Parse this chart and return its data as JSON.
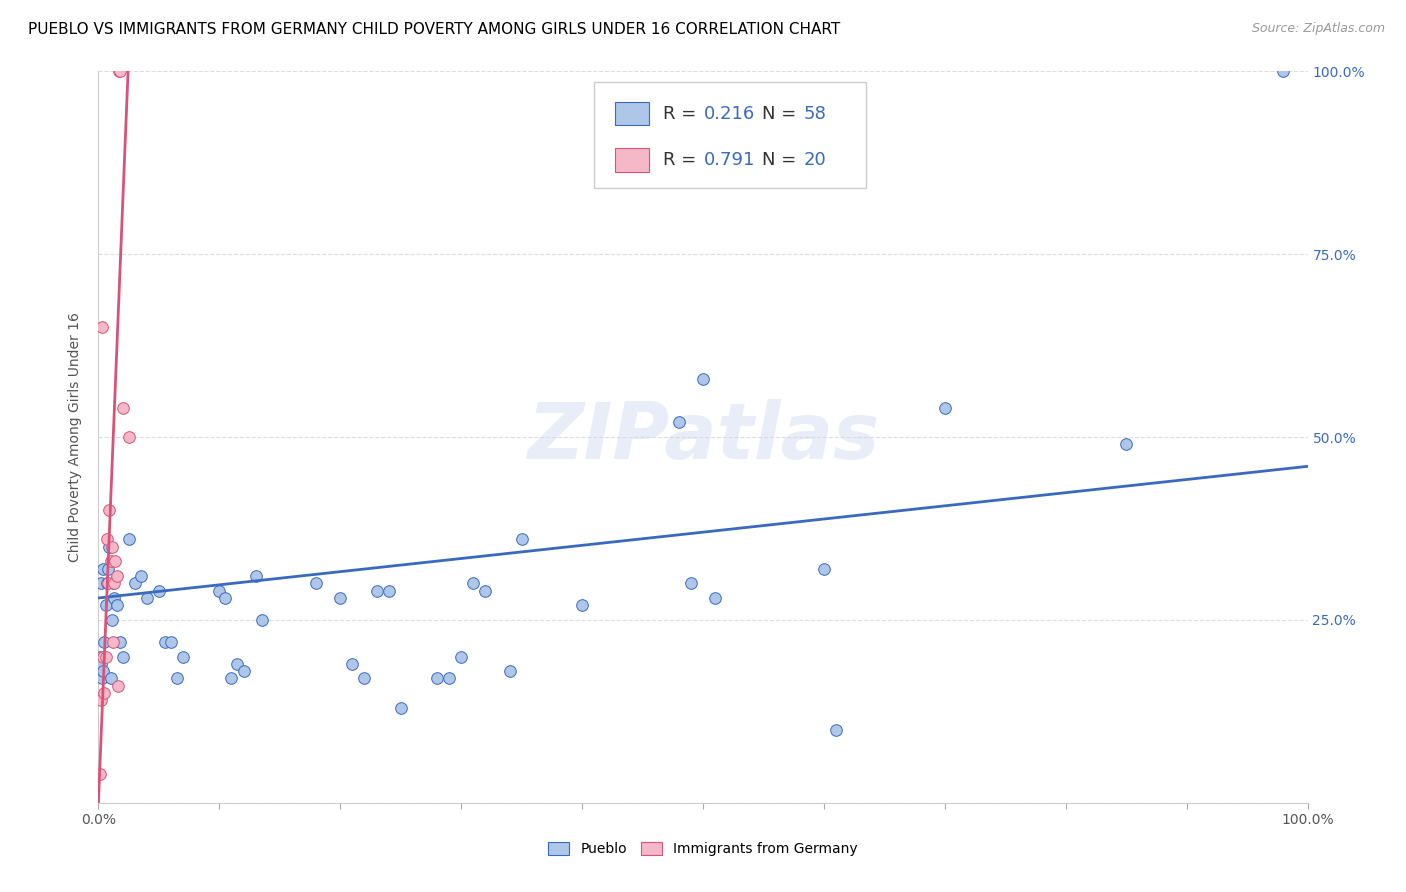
{
  "title": "PUEBLO VS IMMIGRANTS FROM GERMANY CHILD POVERTY AMONG GIRLS UNDER 16 CORRELATION CHART",
  "source": "Source: ZipAtlas.com",
  "ylabel": "Child Poverty Among Girls Under 16",
  "watermark": "ZIPatlas",
  "blue_R": 0.216,
  "blue_N": 58,
  "pink_R": 0.791,
  "pink_N": 20,
  "blue_color": "#aec6e8",
  "pink_color": "#f4b8c8",
  "blue_line_color": "#3a6abf",
  "pink_line_color": "#d9527a",
  "pueblo_x": [
    0.001,
    0.002,
    0.002,
    0.003,
    0.004,
    0.004,
    0.005,
    0.006,
    0.007,
    0.008,
    0.009,
    0.01,
    0.011,
    0.012,
    0.013,
    0.015,
    0.018,
    0.02,
    0.025,
    0.03,
    0.035,
    0.04,
    0.05,
    0.055,
    0.06,
    0.065,
    0.07,
    0.1,
    0.105,
    0.11,
    0.115,
    0.12,
    0.13,
    0.135,
    0.18,
    0.2,
    0.21,
    0.22,
    0.23,
    0.24,
    0.25,
    0.28,
    0.29,
    0.3,
    0.31,
    0.32,
    0.34,
    0.35,
    0.4,
    0.48,
    0.49,
    0.5,
    0.51,
    0.6,
    0.61,
    0.7,
    0.85,
    0.98
  ],
  "pueblo_y": [
    0.2,
    0.19,
    0.3,
    0.17,
    0.18,
    0.32,
    0.22,
    0.27,
    0.3,
    0.32,
    0.35,
    0.17,
    0.25,
    0.3,
    0.28,
    0.27,
    0.22,
    0.2,
    0.36,
    0.3,
    0.31,
    0.28,
    0.29,
    0.22,
    0.22,
    0.17,
    0.2,
    0.29,
    0.28,
    0.17,
    0.19,
    0.18,
    0.31,
    0.25,
    0.3,
    0.28,
    0.19,
    0.17,
    0.29,
    0.29,
    0.13,
    0.17,
    0.17,
    0.2,
    0.3,
    0.29,
    0.18,
    0.36,
    0.27,
    0.52,
    0.3,
    0.58,
    0.28,
    0.32,
    0.1,
    0.54,
    0.49,
    1.0
  ],
  "germany_x": [
    0.001,
    0.002,
    0.003,
    0.004,
    0.005,
    0.006,
    0.007,
    0.008,
    0.009,
    0.01,
    0.011,
    0.012,
    0.013,
    0.014,
    0.015,
    0.016,
    0.017,
    0.018,
    0.02,
    0.025
  ],
  "germany_y": [
    0.04,
    0.14,
    0.65,
    0.2,
    0.15,
    0.2,
    0.36,
    0.3,
    0.4,
    0.33,
    0.35,
    0.22,
    0.3,
    0.33,
    0.31,
    0.16,
    1.0,
    1.0,
    0.54,
    0.5
  ],
  "blue_trend_x": [
    0.0,
    1.0
  ],
  "blue_trend_y": [
    0.28,
    0.46
  ],
  "pink_trend_x": [
    0.0,
    0.025
  ],
  "pink_trend_y": [
    0.0,
    1.02
  ],
  "xlim": [
    0.0,
    1.0
  ],
  "ylim": [
    0.0,
    1.0
  ],
  "grid_color": "#dddddd",
  "title_fontsize": 11,
  "axis_label_fontsize": 10,
  "tick_fontsize": 10,
  "legend_fontsize": 13
}
